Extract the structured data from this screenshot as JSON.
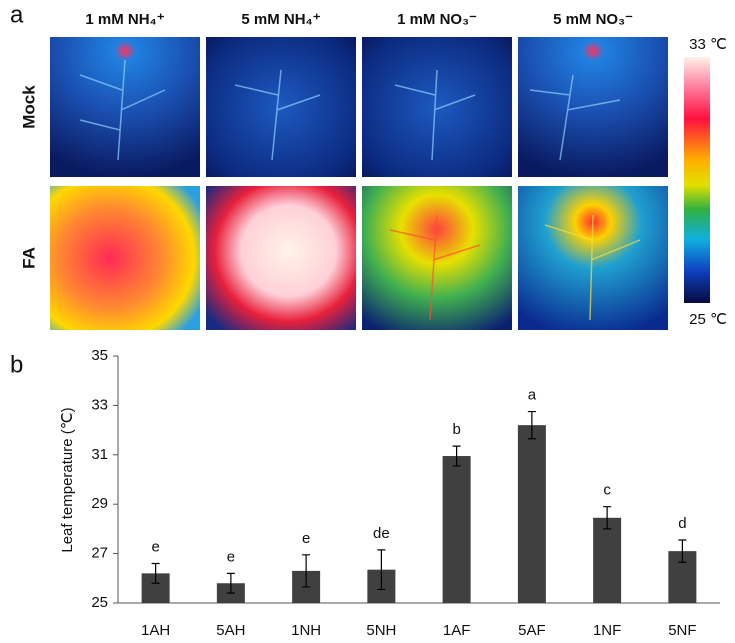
{
  "panel_a": {
    "label": "a",
    "columns": [
      "1 mM NH₄⁺",
      "5 mM NH₄⁺",
      "1 mM NO₃⁻",
      "5 mM NO₃⁻"
    ],
    "rows": [
      "Mock",
      "FA"
    ],
    "colorbar": {
      "max": "33 ℃",
      "min": "25 ℃"
    }
  },
  "chart_data": {
    "type": "bar",
    "panel_label": "b",
    "y_label": "Leaf temperature (℃)",
    "categories": [
      "1AH",
      "5AH",
      "1NH",
      "5NH",
      "1AF",
      "5AF",
      "1NF",
      "5NF"
    ],
    "values": [
      26.2,
      25.8,
      26.3,
      26.35,
      30.95,
      32.2,
      28.45,
      27.1
    ],
    "errors": [
      0.4,
      0.4,
      0.65,
      0.8,
      0.4,
      0.55,
      0.45,
      0.45
    ],
    "significance_letters": [
      "e",
      "e",
      "e",
      "de",
      "b",
      "a",
      "c",
      "d"
    ],
    "color": "#404040",
    "ylim": [
      25,
      35
    ],
    "yticks": [
      25,
      27,
      29,
      31,
      33,
      35
    ]
  }
}
